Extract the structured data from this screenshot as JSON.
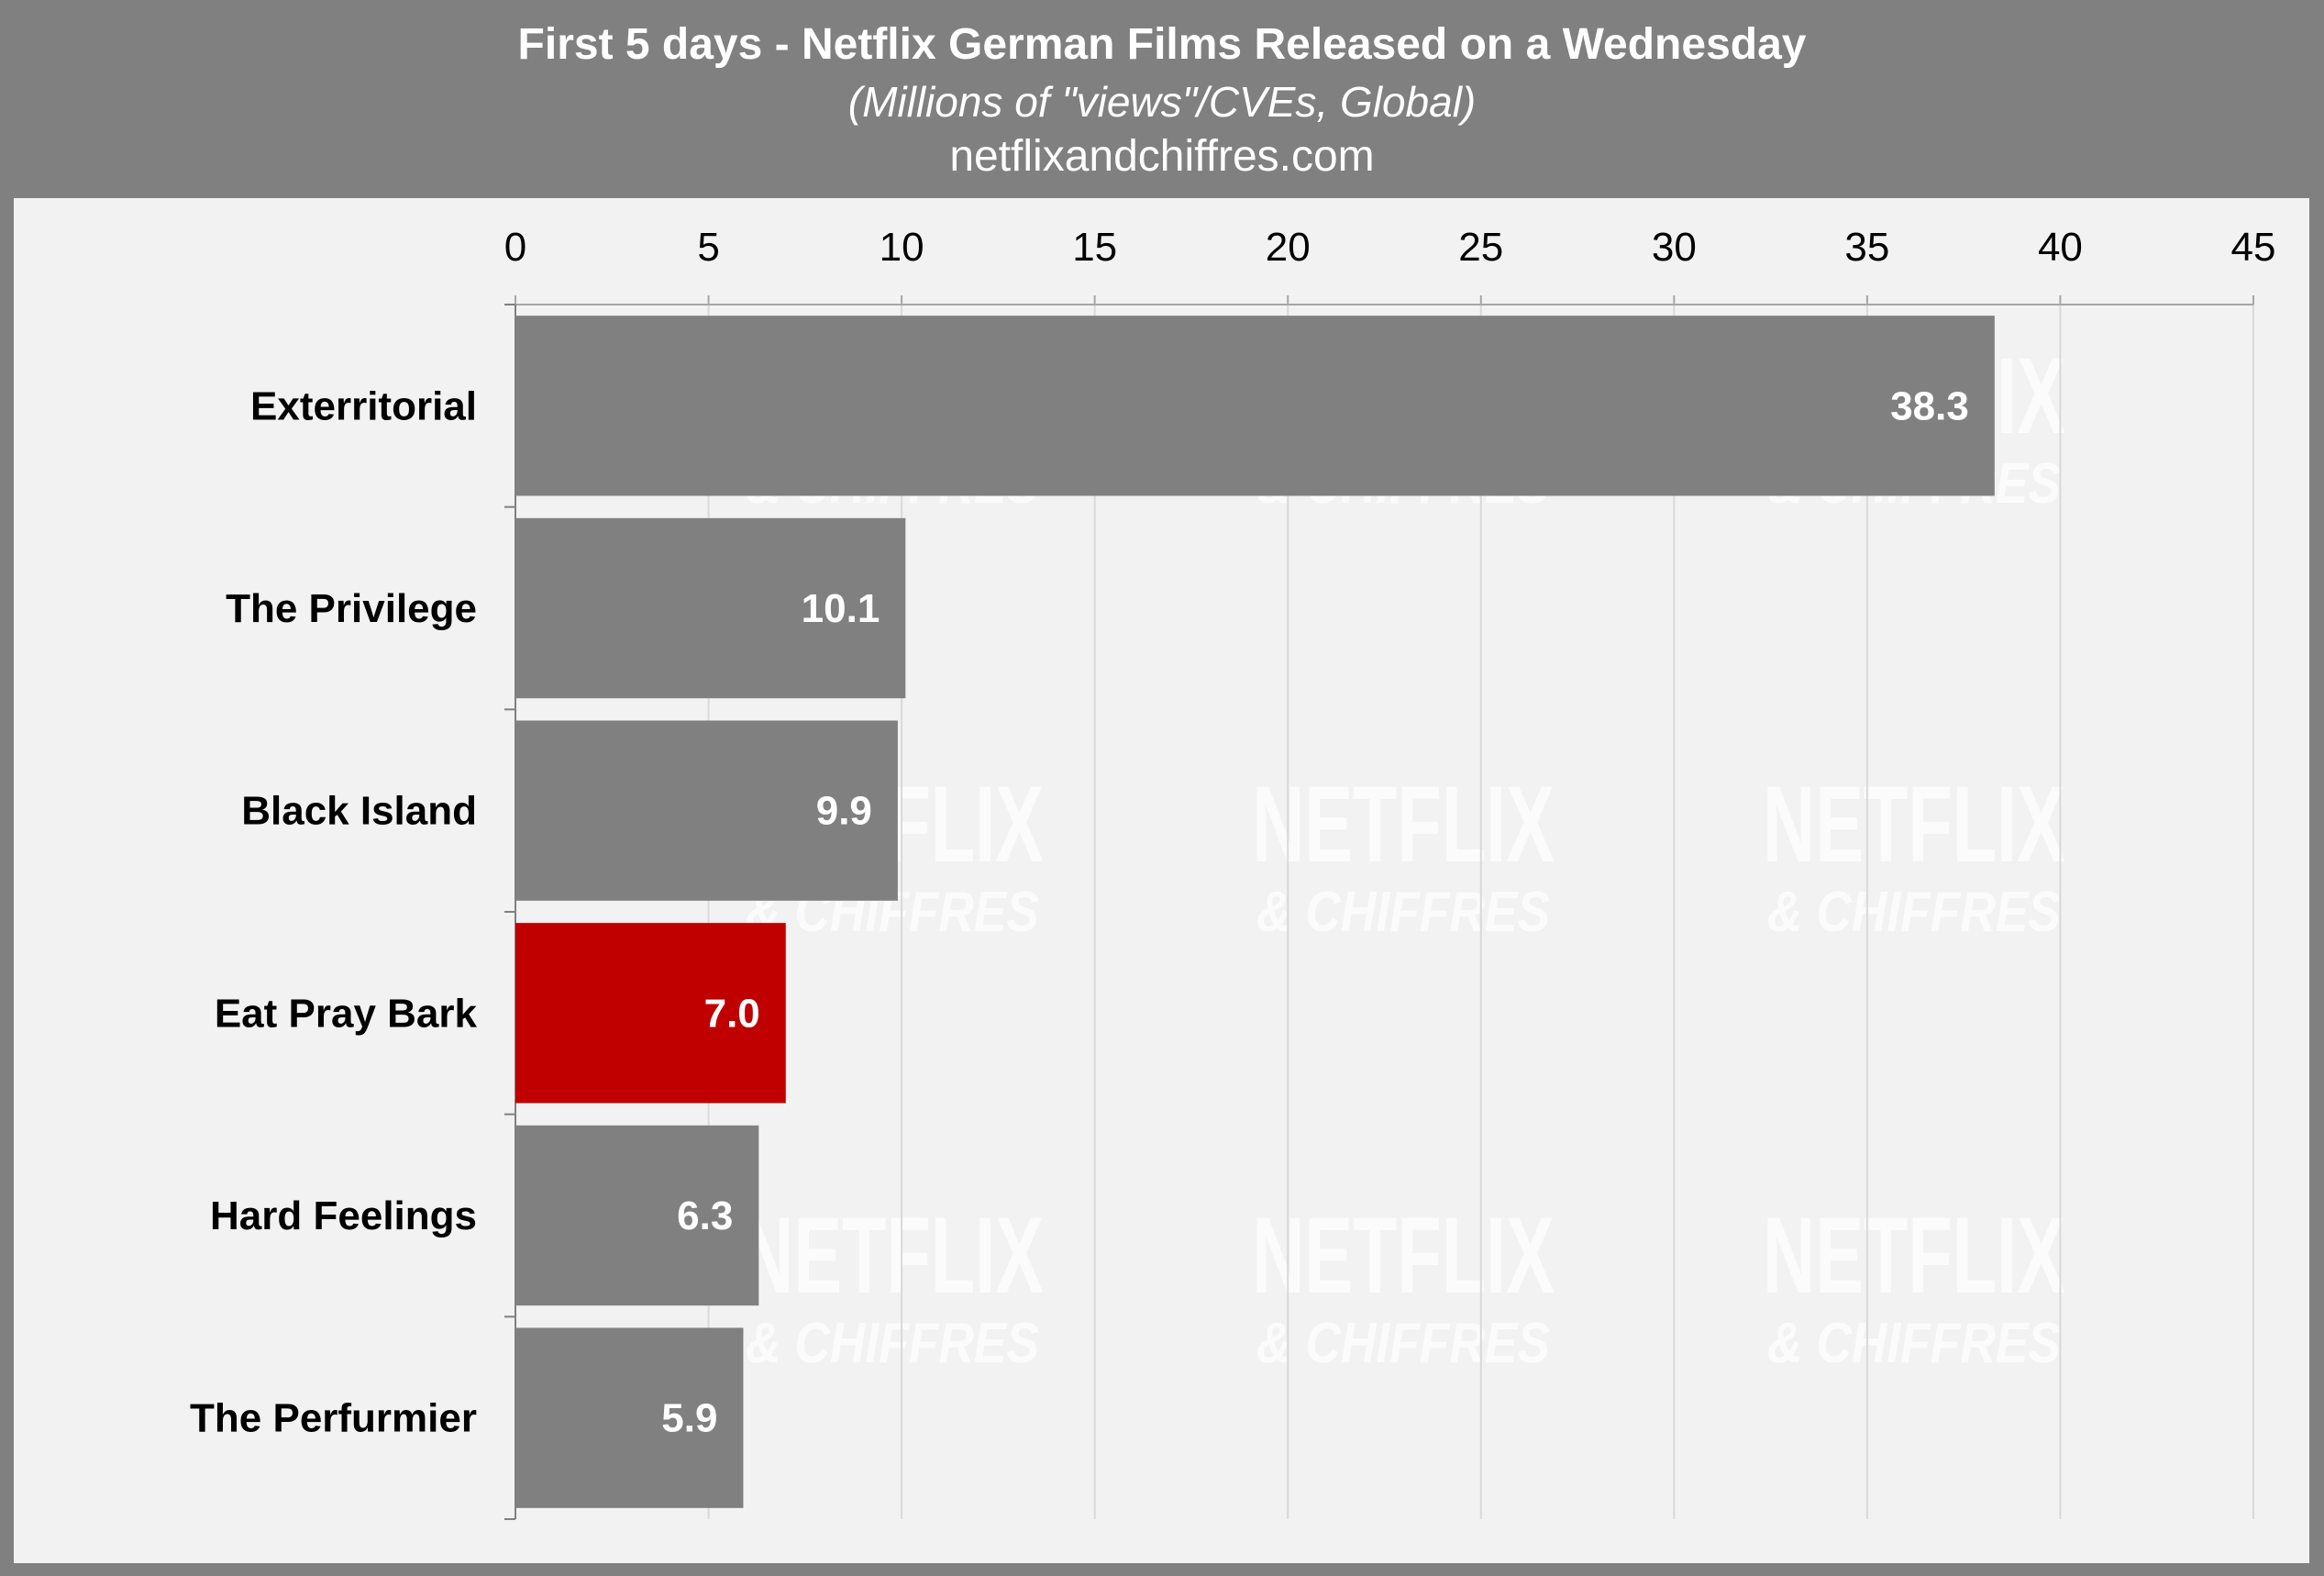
{
  "header": {
    "title": "First 5 days - Netflix German Films Released on a Wednesday",
    "subtitle": "(Millions of \"views\"/CVEs, Global)",
    "source": "netflixandchiffres.com"
  },
  "watermark": {
    "line1": "NETFLIX",
    "line2": "& CHIFFRES"
  },
  "colors": {
    "background": "#808080",
    "panel": "#f2f2f2",
    "bar_default": "#808080",
    "bar_highlight": "#c00000",
    "grid": "#d9d9d9",
    "label_text": "#000000",
    "value_text": "#ffffff"
  },
  "chart_data": {
    "type": "bar",
    "orientation": "horizontal",
    "title": "First 5 days - Netflix German Films Released on a Wednesday",
    "subtitle": "(Millions of \"views\"/CVEs, Global)",
    "categories": [
      "Exterritorial",
      "The Privilege",
      "Black Island",
      "Eat Pray Bark",
      "Hard Feelings",
      "The Perfurmier"
    ],
    "values": [
      38.3,
      10.1,
      9.9,
      7.0,
      6.3,
      5.9
    ],
    "value_labels": [
      "38.3",
      "10.1",
      "9.9",
      "7.0",
      "6.3",
      "5.9"
    ],
    "highlight": "Eat Pray Bark",
    "xlim": [
      0,
      45
    ],
    "xticks": [
      0,
      5,
      10,
      15,
      20,
      25,
      30,
      35,
      40,
      45
    ],
    "x_axis_position": "top",
    "grid": true,
    "legend": "none"
  }
}
